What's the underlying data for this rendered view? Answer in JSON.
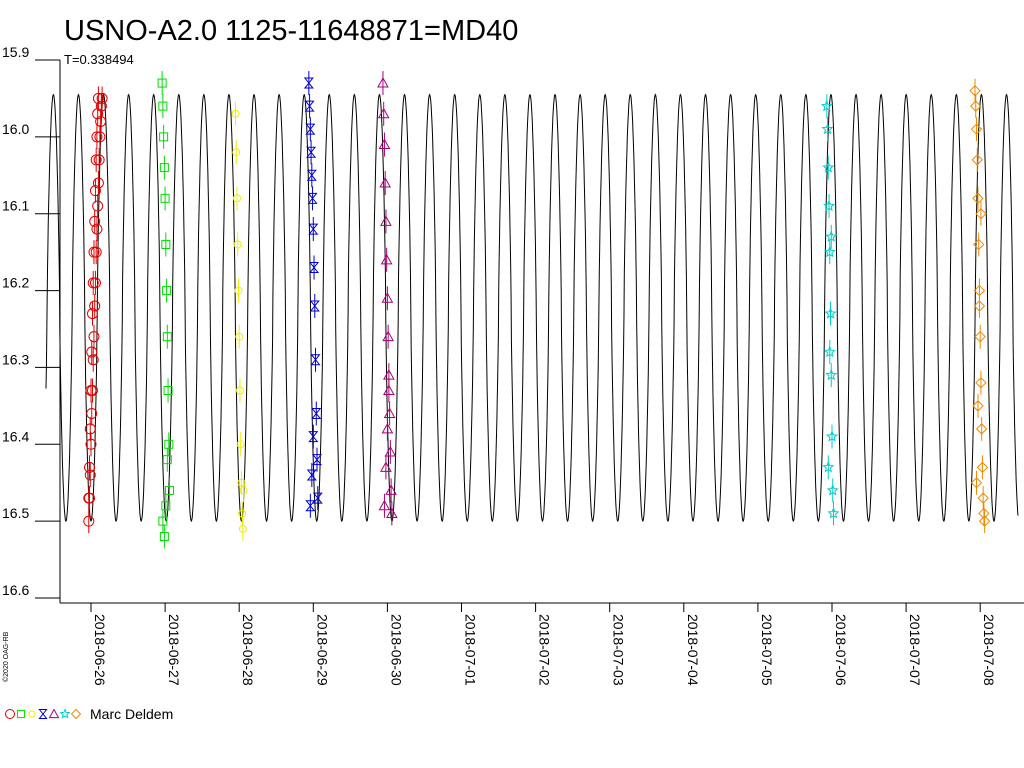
{
  "chart_data": {
    "type": "scatter",
    "title": "USNO-A2.0 1125-11648871=MD40",
    "period_label": "T=0.338494",
    "ylim": [
      15.9,
      16.6
    ],
    "y_inverted": true,
    "yticks": [
      "15.9",
      "16.0",
      "16.1",
      "16.2",
      "16.3",
      "16.4",
      "16.5",
      "16.6"
    ],
    "x_categories": [
      "2018-06-26",
      "2018-06-27",
      "2018-06-28",
      "2018-06-29",
      "2018-06-30",
      "2018-07-01",
      "2018-07-02",
      "2018-07-03",
      "2018-07-04",
      "2018-07-05",
      "2018-07-06",
      "2018-07-07",
      "2018-07-08"
    ],
    "model": {
      "period_days": 0.338494,
      "min_mag": 15.945,
      "max_mag": 16.5,
      "color": "#000000"
    },
    "credit": "©2020 OAG-RB",
    "legend_observer": "Marc Deldem",
    "series": [
      {
        "marker": "circle",
        "color": "#e00000",
        "x": [
          -0.03,
          -0.02,
          -0.01,
          0.0,
          0.01,
          0.02,
          0.03,
          0.04,
          0.05,
          0.06,
          0.07,
          0.08,
          0.09,
          0.1,
          0.11,
          0.12,
          0.13,
          0.14,
          0.15,
          -0.03,
          -0.02,
          -0.01,
          0.0,
          0.01,
          0.02,
          0.03,
          0.04,
          0.05,
          0.06,
          0.07,
          0.08,
          0.09,
          0.1
        ],
        "y": [
          16.5,
          16.47,
          16.44,
          16.4,
          16.36,
          16.33,
          16.29,
          16.26,
          16.22,
          16.19,
          16.15,
          16.12,
          16.09,
          16.06,
          16.03,
          16.0,
          15.98,
          15.96,
          15.95,
          16.47,
          16.43,
          16.38,
          16.33,
          16.28,
          16.23,
          16.19,
          16.15,
          16.11,
          16.07,
          16.03,
          16.0,
          15.97,
          15.95
        ]
      },
      {
        "marker": "square",
        "color": "#00dd00",
        "x": [
          0.96,
          0.97,
          0.98,
          0.99,
          1.0,
          1.01,
          1.02,
          1.03,
          1.04,
          1.05,
          1.06,
          0.97,
          0.99,
          1.01,
          1.03
        ],
        "y": [
          15.93,
          15.96,
          16.0,
          16.04,
          16.08,
          16.14,
          16.2,
          16.26,
          16.33,
          16.4,
          16.46,
          16.5,
          16.52,
          16.48,
          16.42
        ]
      },
      {
        "marker": "circle-small",
        "color": "#eeee00",
        "x": [
          1.95,
          1.96,
          1.97,
          1.98,
          1.99,
          2.0,
          2.01,
          2.02,
          2.03,
          2.04,
          2.05,
          2.06
        ],
        "y": [
          15.97,
          16.02,
          16.08,
          16.14,
          16.2,
          16.26,
          16.33,
          16.4,
          16.45,
          16.49,
          16.51,
          16.46
        ]
      },
      {
        "marker": "bowtie",
        "color": "#0000cc",
        "x": [
          2.94,
          2.95,
          2.96,
          2.97,
          2.98,
          2.99,
          3.0,
          3.01,
          3.02,
          3.03,
          3.04,
          3.05,
          3.06,
          2.96,
          2.98,
          3.0
        ],
        "y": [
          15.93,
          15.96,
          15.99,
          16.02,
          16.05,
          16.08,
          16.12,
          16.17,
          16.22,
          16.29,
          16.36,
          16.42,
          16.47,
          16.48,
          16.44,
          16.39
        ]
      },
      {
        "marker": "triangle",
        "color": "#aa0077",
        "x": [
          3.94,
          3.95,
          3.96,
          3.97,
          3.98,
          3.99,
          4.0,
          4.01,
          4.02,
          4.03,
          4.04,
          4.05,
          4.06,
          3.96,
          3.98,
          4.0,
          4.02
        ],
        "y": [
          15.93,
          15.97,
          16.01,
          16.06,
          16.11,
          16.16,
          16.21,
          16.26,
          16.31,
          16.36,
          16.41,
          16.46,
          16.49,
          16.48,
          16.43,
          16.38,
          16.33
        ]
      },
      {
        "marker": "star",
        "color": "#00cccc",
        "x": [
          9.93,
          9.94,
          9.95,
          9.96,
          9.97,
          9.98,
          9.99,
          10.0,
          10.01,
          10.02,
          9.95,
          9.97,
          9.99
        ],
        "y": [
          15.96,
          15.99,
          16.04,
          16.09,
          16.15,
          16.23,
          16.31,
          16.39,
          16.46,
          16.49,
          16.43,
          16.28,
          16.13
        ]
      },
      {
        "marker": "diamond",
        "color": "#ee8800",
        "x": [
          11.93,
          11.94,
          11.95,
          11.96,
          11.97,
          11.98,
          11.99,
          12.0,
          12.01,
          12.02,
          12.03,
          12.04,
          12.05,
          12.06,
          11.95,
          11.97,
          11.99,
          12.01
        ],
        "y": [
          15.94,
          15.96,
          15.99,
          16.03,
          16.08,
          16.14,
          16.2,
          16.26,
          16.32,
          16.38,
          16.43,
          16.47,
          16.49,
          16.5,
          16.45,
          16.35,
          16.22,
          16.1
        ]
      }
    ]
  }
}
